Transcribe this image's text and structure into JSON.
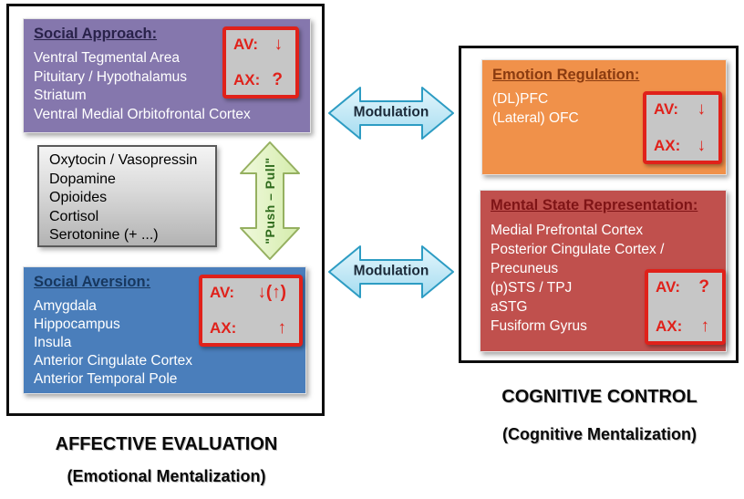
{
  "boxes": {
    "social_approach": {
      "title": "Social Approach:",
      "regions": [
        "Ventral Tegmental Area",
        "Pituitary / Hypothalamus",
        "Striatum",
        "Ventral Medial Orbitofrontal Cortex"
      ],
      "avax": {
        "av_label": "AV:",
        "av_value": "↓",
        "ax_label": "AX:",
        "ax_value": "?"
      }
    },
    "neurotransmitters": {
      "items": [
        "Oxytocin / Vasopressin",
        "Dopamine",
        "Opioides",
        "Cortisol",
        "Serotonine (+ ...)"
      ]
    },
    "social_aversion": {
      "title": "Social Aversion:",
      "regions": [
        "Amygdala",
        "Hippocampus",
        "Insula",
        "Anterior Cingulate Cortex",
        "Anterior Temporal Pole"
      ],
      "avax": {
        "av_label": "AV:",
        "av_value": "↓(↑)",
        "ax_label": "AX:",
        "ax_value": "↑"
      }
    },
    "emotion_regulation": {
      "title": "Emotion Regulation:",
      "regions": [
        "(DL)PFC",
        "(Lateral) OFC"
      ],
      "avax": {
        "av_label": "AV:",
        "av_value": "↓",
        "ax_label": "AX:",
        "ax_value": "↓"
      }
    },
    "mental_state_representation": {
      "title": "Mental State Representation:",
      "regions": [
        "Medial Prefrontal Cortex",
        "Posterior Cingulate Cortex  /",
        "Precuneus",
        "(p)STS / TPJ",
        "aSTG",
        "Fusiform Gyrus"
      ],
      "avax": {
        "av_label": "AV:",
        "av_value": "?",
        "ax_label": "AX:",
        "ax_value": "↑"
      }
    }
  },
  "arrows": {
    "modulation_top": "Modulation",
    "modulation_bottom": "Modulation",
    "push_pull": "\"Push – Pull\""
  },
  "captions": {
    "left_line1": "AFFECTIVE EVALUATION",
    "left_line2": "(Emotional Mentalization)",
    "right_line1": "COGNITIVE CONTROL",
    "right_line2": "(Cognitive Mentalization)"
  },
  "colors": {
    "social_approach_bg": "#8577ad",
    "social_aversion_bg": "#4a7ebb",
    "emotion_regulation_bg": "#f0914a",
    "mental_state_bg": "#c0504d",
    "avax_border": "#e0211a",
    "avax_bg": "#c6c6c6",
    "avax_text": "#e0211a",
    "modulation_fill_light": "#e4f6fc",
    "modulation_fill_dark": "#a5dcf0",
    "modulation_border": "#2d9cc3",
    "modulation_text": "#1c2b3a",
    "push_pull_fill_light": "#f0f9dd",
    "push_pull_fill_dark": "#d4ecab",
    "push_pull_border": "#95b060",
    "push_pull_text": "#2f6b1d",
    "frame_border": "#0e0e0e"
  }
}
